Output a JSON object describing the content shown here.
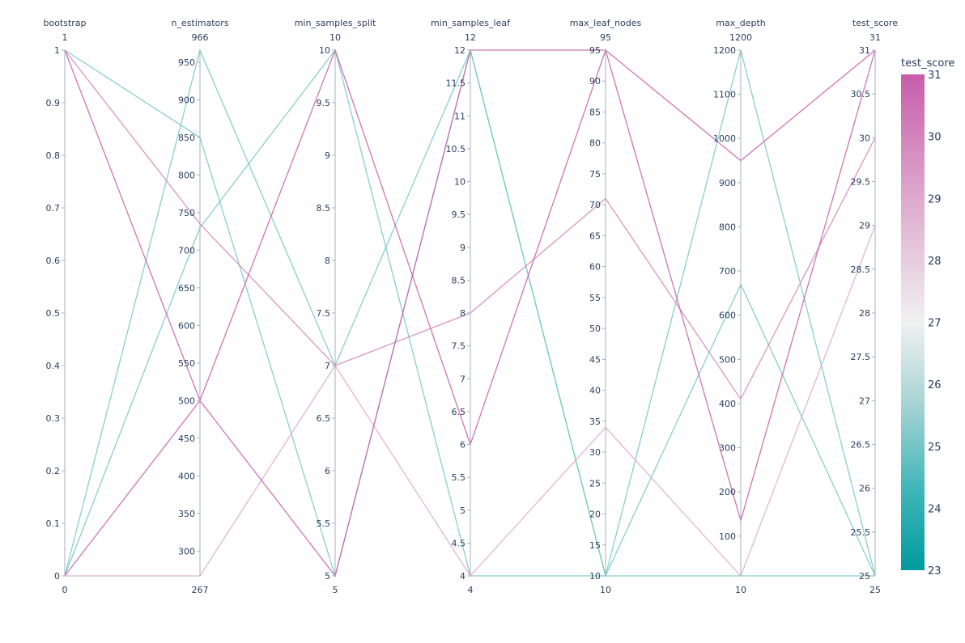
{
  "chart_data": {
    "type": "parallel_coordinates",
    "dimensions": [
      {
        "label": "bootstrap",
        "range": [
          0,
          1
        ],
        "ticks": [
          0,
          0.1,
          0.2,
          0.3,
          0.4,
          0.5,
          0.6,
          0.7,
          0.8,
          0.9,
          1
        ],
        "tick_text": [
          "0",
          "0.1",
          "0.2",
          "0.3",
          "0.4",
          "0.5",
          "0.6",
          "0.7",
          "0.8",
          "0.9",
          "1"
        ],
        "min_label": "0",
        "max_label": "1"
      },
      {
        "label": "n_estimators",
        "range": [
          267,
          966
        ],
        "ticks": [
          300,
          350,
          400,
          450,
          500,
          550,
          600,
          650,
          700,
          750,
          800,
          850,
          900,
          950
        ],
        "tick_text": [
          "300",
          "350",
          "400",
          "450",
          "500",
          "550",
          "600",
          "650",
          "700",
          "750",
          "800",
          "850",
          "900",
          "950"
        ],
        "min_label": "267",
        "max_label": "966"
      },
      {
        "label": "min_samples_split",
        "range": [
          5,
          10
        ],
        "ticks": [
          5,
          5.5,
          6,
          6.5,
          7,
          7.5,
          8,
          8.5,
          9,
          9.5,
          10
        ],
        "tick_text": [
          "5",
          "5.5",
          "6",
          "6.5",
          "7",
          "7.5",
          "8",
          "8.5",
          "9",
          "9.5",
          "10"
        ],
        "min_label": "5",
        "max_label": "10"
      },
      {
        "label": "min_samples_leaf",
        "range": [
          4,
          12
        ],
        "ticks": [
          4,
          4.5,
          5,
          5.5,
          6,
          6.5,
          7,
          7.5,
          8,
          8.5,
          9,
          9.5,
          10,
          10.5,
          11,
          11.5,
          12
        ],
        "tick_text": [
          "4",
          "4.5",
          "5",
          "5.5",
          "6",
          "6.5",
          "7",
          "7.5",
          "8",
          "8.5",
          "9",
          "9.5",
          "10",
          "10.5",
          "11",
          "11.5",
          "12"
        ],
        "min_label": "4",
        "max_label": "12"
      },
      {
        "label": "max_leaf_nodes",
        "range": [
          10,
          95
        ],
        "ticks": [
          10,
          15,
          20,
          25,
          30,
          35,
          40,
          45,
          50,
          55,
          60,
          65,
          70,
          75,
          80,
          85,
          90,
          95
        ],
        "tick_text": [
          "10",
          "15",
          "20",
          "25",
          "30",
          "35",
          "40",
          "45",
          "50",
          "55",
          "60",
          "65",
          "70",
          "75",
          "80",
          "85",
          "90",
          "95"
        ],
        "min_label": "10",
        "max_label": "95"
      },
      {
        "label": "max_depth",
        "range": [
          10,
          1200
        ],
        "ticks": [
          100,
          200,
          300,
          400,
          500,
          600,
          700,
          800,
          900,
          1000,
          1100,
          1200
        ],
        "tick_text": [
          "100",
          "200",
          "300",
          "400",
          "500",
          "600",
          "700",
          "800",
          "900",
          "1000",
          "1100",
          "1200"
        ],
        "min_label": "10",
        "max_label": "1200"
      },
      {
        "label": "test_score",
        "range": [
          25,
          31
        ],
        "ticks": [
          25,
          25.5,
          26,
          26.5,
          27,
          27.5,
          28,
          28.5,
          29,
          29.5,
          30,
          30.5,
          31
        ],
        "tick_text": [
          "25",
          "25.5",
          "26",
          "26.5",
          "27",
          "27.5",
          "28",
          "28.5",
          "29",
          "29.5",
          "30",
          "30.5",
          "31"
        ],
        "min_label": "25",
        "max_label": "31"
      }
    ],
    "records": [
      [
        0,
        500,
        10,
        6,
        95,
        135,
        31
      ],
      [
        1,
        500,
        5,
        12,
        95,
        950,
        31
      ],
      [
        1,
        735,
        7,
        8,
        71,
        410,
        30
      ],
      [
        0,
        267,
        7,
        4,
        34,
        10,
        29
      ],
      [
        1,
        850,
        5,
        12,
        10,
        1200,
        25
      ],
      [
        0,
        966,
        7,
        12,
        10,
        670,
        25
      ],
      [
        0,
        730,
        10,
        4,
        10,
        10,
        25
      ]
    ],
    "colorbar": {
      "title": "test_score",
      "range": [
        23,
        31
      ],
      "ticks": [
        23,
        24,
        25,
        26,
        27,
        28,
        29,
        30,
        31
      ],
      "tick_text": [
        "23",
        "24",
        "25",
        "26",
        "27",
        "28",
        "29",
        "30",
        "31"
      ],
      "colorscale": [
        "#009b9e",
        "#42b7b9",
        "#a7d3d4",
        "#f1f1f1",
        "#e4c1d9",
        "#d691c1",
        "#c75dab"
      ]
    }
  }
}
